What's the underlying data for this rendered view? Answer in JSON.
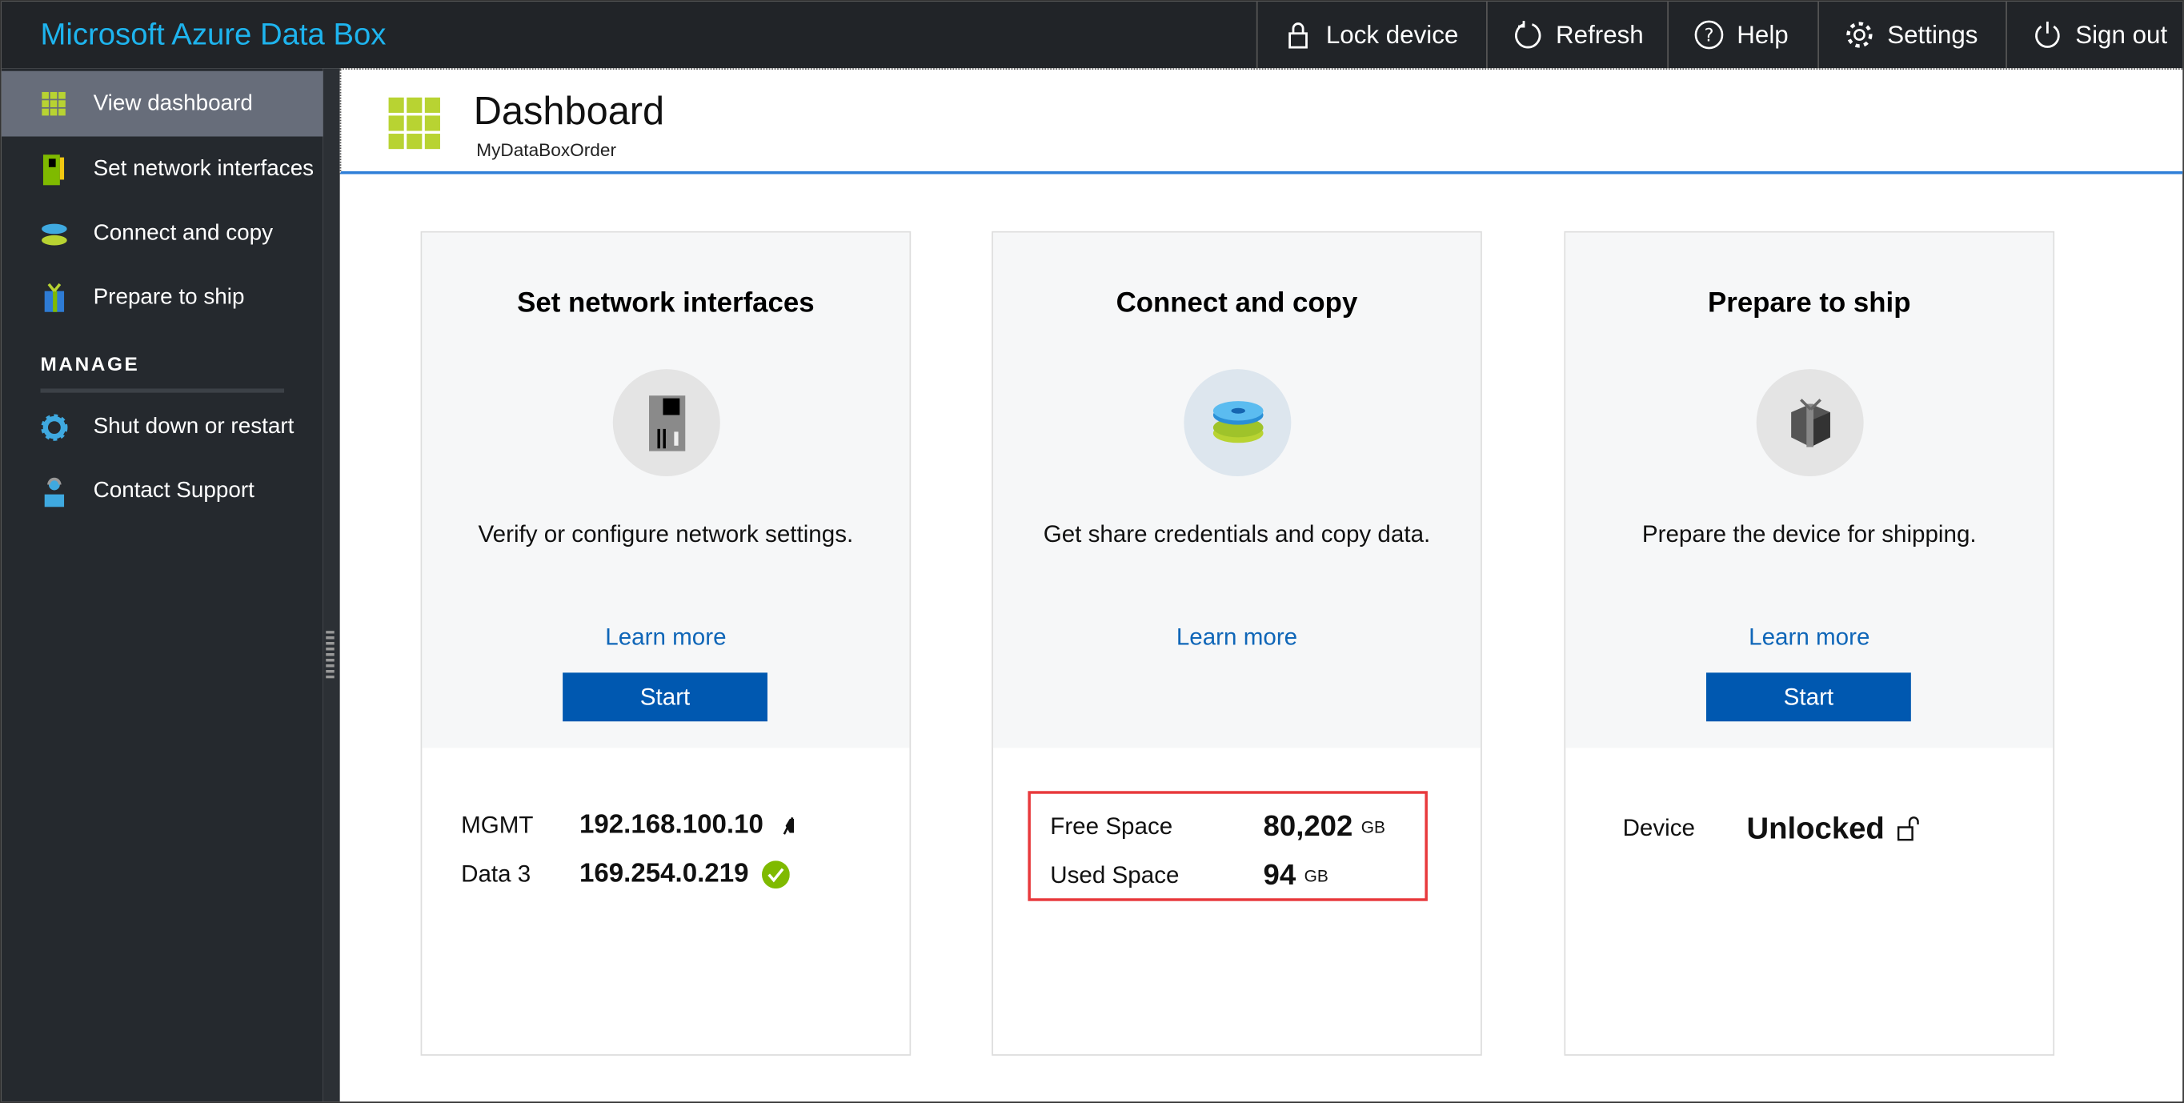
{
  "app_title": "Microsoft Azure Data Box",
  "toolbar": [
    {
      "label": "Lock device",
      "icon": "lock-icon"
    },
    {
      "label": "Refresh",
      "icon": "refresh-icon"
    },
    {
      "label": "Help",
      "icon": "help-icon"
    },
    {
      "label": "Settings",
      "icon": "gear-icon"
    },
    {
      "label": "Sign out",
      "icon": "power-icon"
    }
  ],
  "sidebar": {
    "items": [
      {
        "label": "View dashboard",
        "selected": true
      },
      {
        "label": "Set network interfaces"
      },
      {
        "label": "Connect and copy"
      },
      {
        "label": "Prepare to ship"
      }
    ],
    "section": "MANAGE",
    "manage_items": [
      {
        "label": "Shut down or restart"
      },
      {
        "label": "Contact Support"
      }
    ]
  },
  "header": {
    "title": "Dashboard",
    "subtitle": "MyDataBoxOrder"
  },
  "cards": [
    {
      "title": "Set network interfaces",
      "description": "Verify or configure network settings.",
      "learn_more": "Learn more",
      "button": "Start",
      "rows": [
        {
          "label": "MGMT",
          "value": "192.168.100.10",
          "status": "disconnected"
        },
        {
          "label": "Data 3",
          "value": "169.254.0.219",
          "status": "connected"
        }
      ]
    },
    {
      "title": "Connect and copy",
      "description": "Get share credentials and copy data.",
      "learn_more": "Learn more",
      "rows": [
        {
          "label": "Free Space",
          "value": "80,202",
          "unit": "GB"
        },
        {
          "label": "Used Space",
          "value": "94",
          "unit": "GB"
        }
      ]
    },
    {
      "title": "Prepare to ship",
      "description": "Prepare the device for shipping.",
      "learn_more": "Learn more",
      "button": "Start",
      "rows": [
        {
          "label": "Device",
          "value": "Unlocked",
          "status": "unlocked"
        }
      ]
    }
  ],
  "colors": {
    "accent": "#1eb4ee",
    "button": "#0058b0",
    "link": "#0f66b8",
    "highlight": "#e8393c",
    "ok": "#7fba00"
  }
}
